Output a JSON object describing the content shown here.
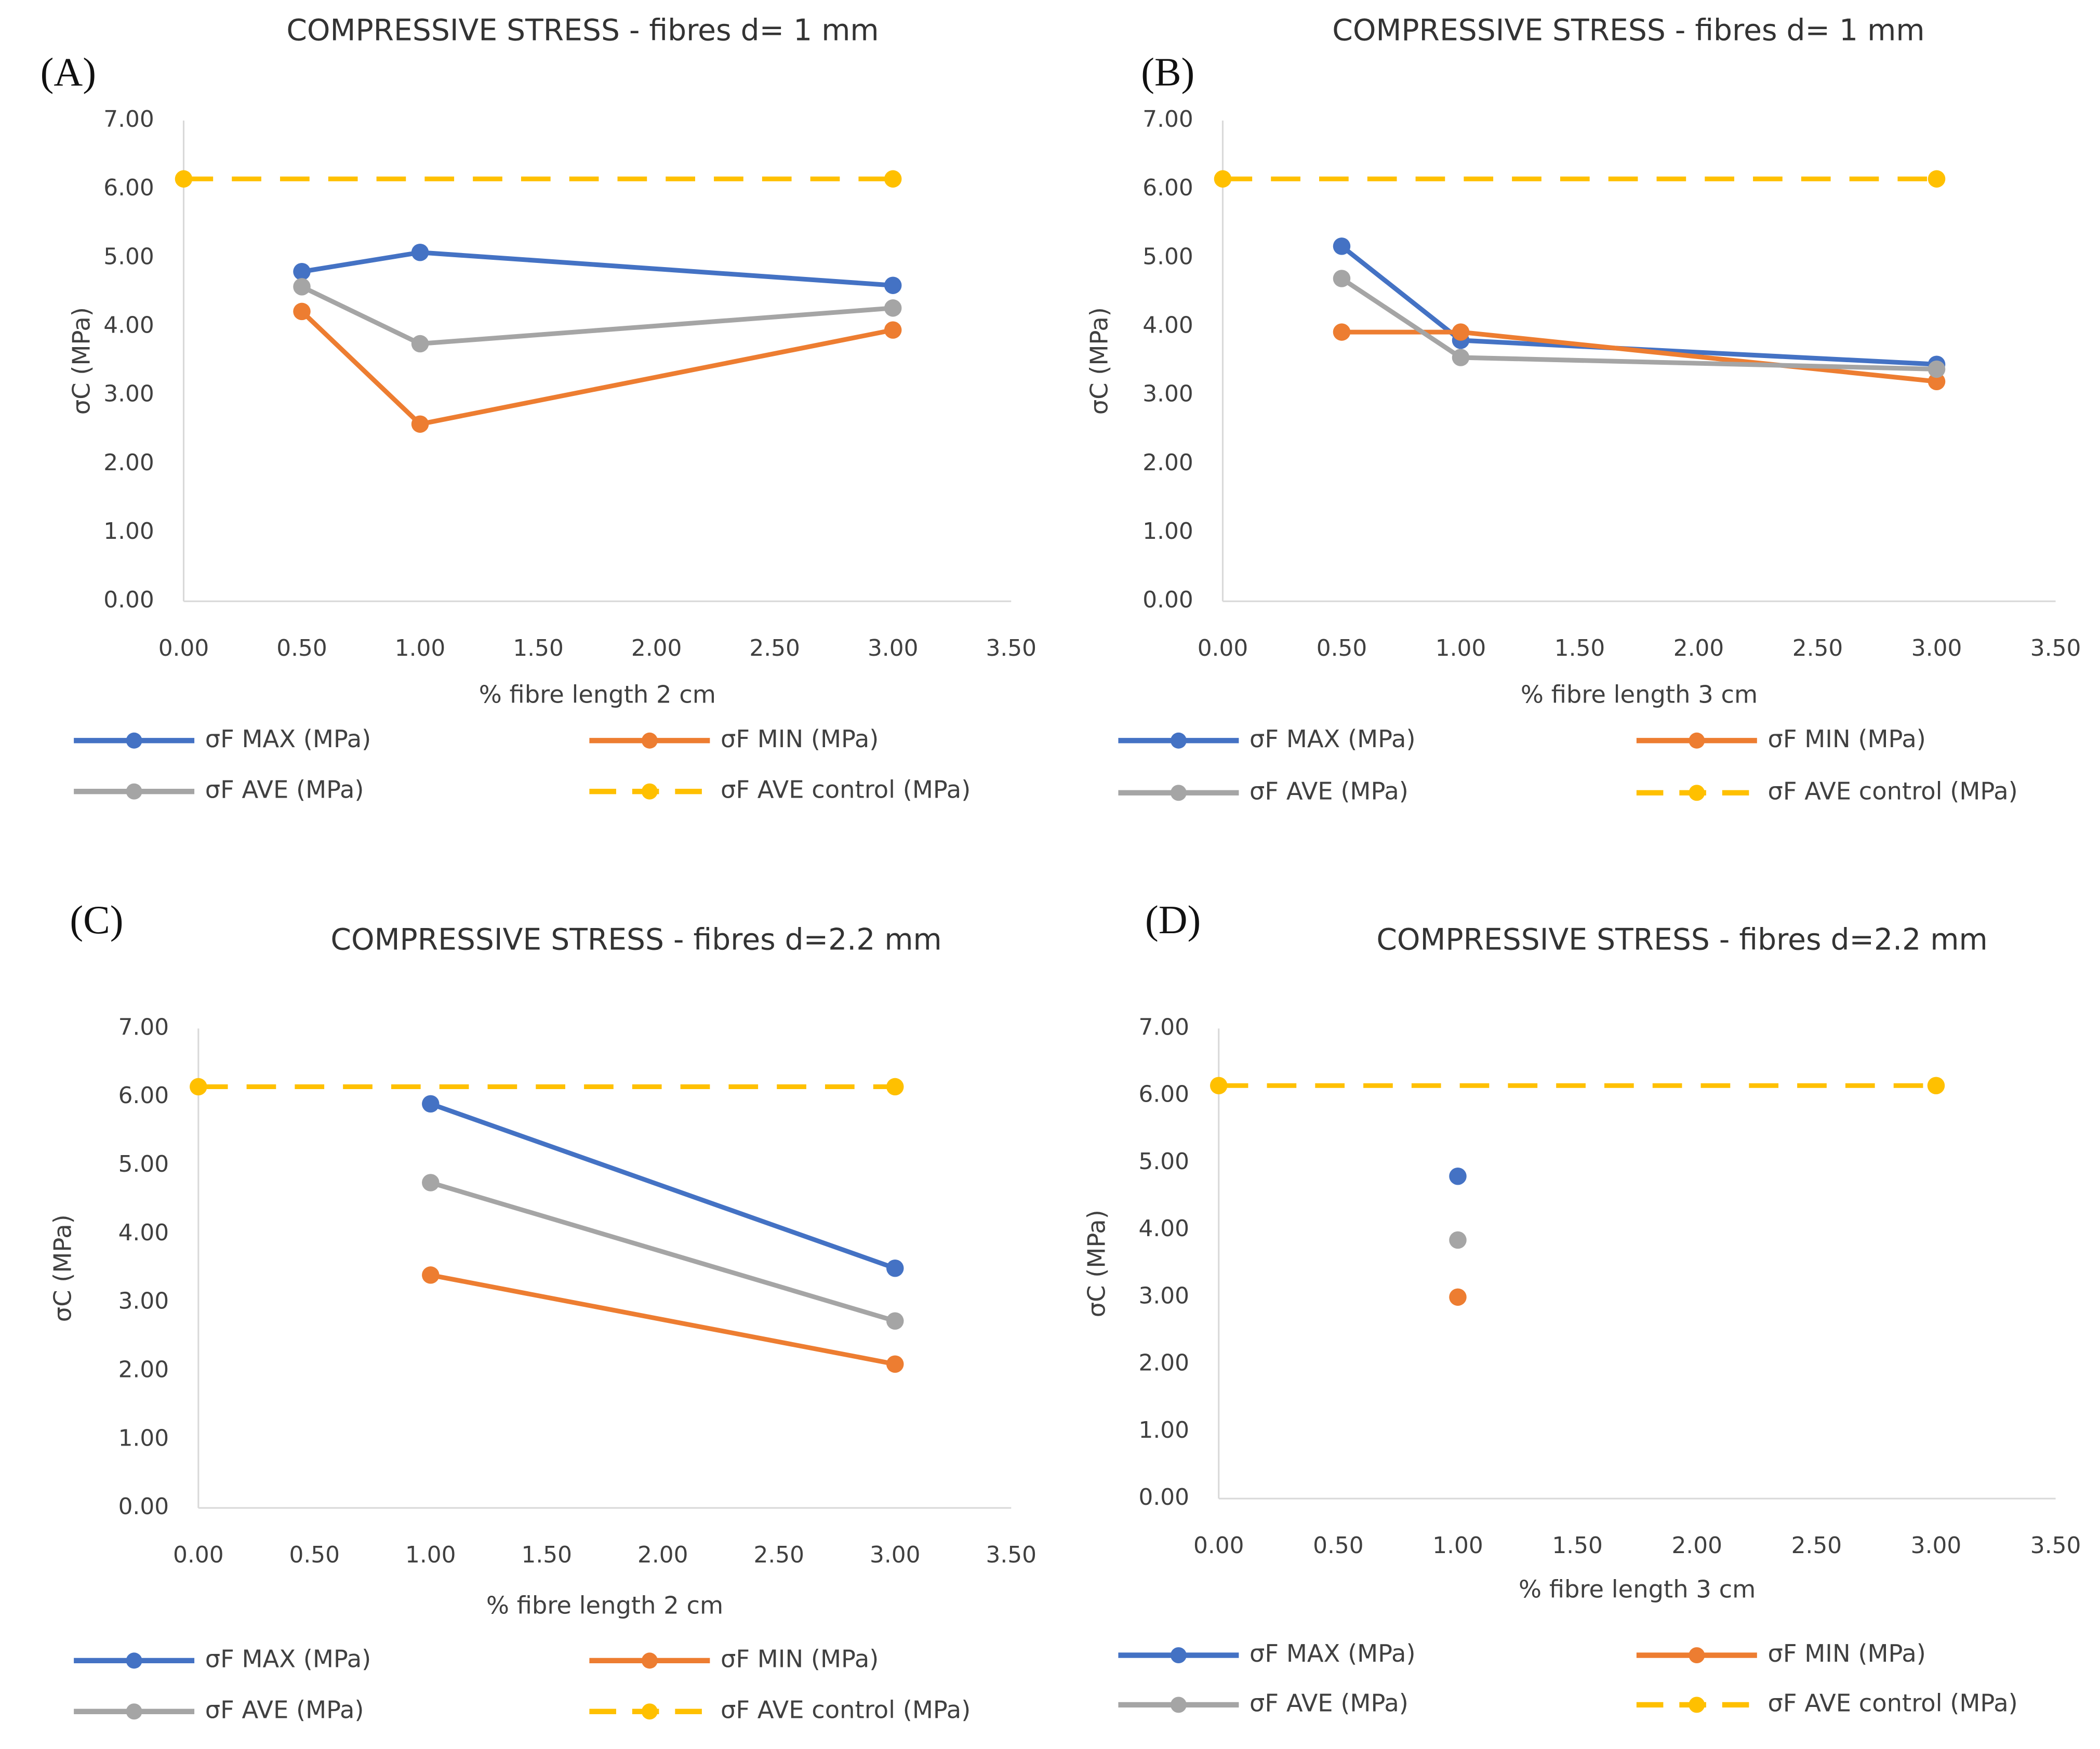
{
  "chart_data": [
    {
      "type": "scatter",
      "panel_label": "(A)",
      "title": "COMPRESSIVE STRESS - fibres d= 1 mm",
      "x_label": "% fibre length 2 cm",
      "y_label": "σC (MPa)",
      "xlim": [
        0,
        3.5
      ],
      "ylim": [
        0,
        7
      ],
      "grid": false,
      "xticks": [
        {
          "value": 0,
          "label": "0.00"
        },
        {
          "value": 0.5,
          "label": "0.50"
        },
        {
          "value": 1,
          "label": "1.00"
        },
        {
          "value": 1.5,
          "label": "1.50"
        },
        {
          "value": 2,
          "label": "2.00"
        },
        {
          "value": 2.5,
          "label": "2.50"
        },
        {
          "value": 3,
          "label": "3.00"
        },
        {
          "value": 3.5,
          "label": "3.50"
        }
      ],
      "yticks": [
        {
          "value": 0,
          "label": "0.00"
        },
        {
          "value": 1,
          "label": "1.00"
        },
        {
          "value": 2,
          "label": "2.00"
        },
        {
          "value": 3,
          "label": "3.00"
        },
        {
          "value": 4,
          "label": "4.00"
        },
        {
          "value": 5,
          "label": "5.00"
        },
        {
          "value": 6,
          "label": "6.00"
        },
        {
          "value": 7,
          "label": "7.00"
        }
      ],
      "series": [
        {
          "name": "σF MAX (MPa)",
          "color": "#4472c4",
          "line_style": "solid",
          "x": [
            0.5,
            1,
            3
          ],
          "values": [
            4.8,
            5.08,
            4.6
          ]
        },
        {
          "name": "σF MIN (MPa)",
          "color": "#ed7d31",
          "line_style": "solid",
          "x": [
            0.5,
            1,
            3
          ],
          "values": [
            4.22,
            2.58,
            3.95
          ]
        },
        {
          "name": "σF AVE (MPa)",
          "color": "#a5a5a5",
          "line_style": "solid",
          "x": [
            0.5,
            1,
            3
          ],
          "values": [
            4.58,
            3.75,
            4.27
          ]
        },
        {
          "name": "σF AVE control (MPa)",
          "color": "#ffc000",
          "line_style": "dashed",
          "x": [
            0,
            3
          ],
          "values": [
            6.15,
            6.15
          ]
        }
      ]
    },
    {
      "type": "scatter",
      "panel_label": "(B)",
      "title": "COMPRESSIVE STRESS - fibres d= 1 mm",
      "x_label": "% fibre length 3 cm",
      "y_label": "σC (MPa)",
      "xlim": [
        0,
        3.5
      ],
      "ylim": [
        0,
        7
      ],
      "grid": false,
      "xticks": [
        {
          "value": 0,
          "label": "0.00"
        },
        {
          "value": 0.5,
          "label": "0.50"
        },
        {
          "value": 1,
          "label": "1.00"
        },
        {
          "value": 1.5,
          "label": "1.50"
        },
        {
          "value": 2,
          "label": "2.00"
        },
        {
          "value": 2.5,
          "label": "2.50"
        },
        {
          "value": 3,
          "label": "3.00"
        },
        {
          "value": 3.5,
          "label": "3.50"
        }
      ],
      "yticks": [
        {
          "value": 0,
          "label": "0.00"
        },
        {
          "value": 1,
          "label": "1.00"
        },
        {
          "value": 2,
          "label": "2.00"
        },
        {
          "value": 3,
          "label": "3.00"
        },
        {
          "value": 4,
          "label": "4.00"
        },
        {
          "value": 5,
          "label": "5.00"
        },
        {
          "value": 6,
          "label": "6.00"
        },
        {
          "value": 7,
          "label": "7.00"
        }
      ],
      "series": [
        {
          "name": "σF MAX (MPa)",
          "color": "#4472c4",
          "line_style": "solid",
          "x": [
            0.5,
            1,
            3
          ],
          "values": [
            5.17,
            3.8,
            3.45
          ]
        },
        {
          "name": "σF MIN (MPa)",
          "color": "#ed7d31",
          "line_style": "solid",
          "x": [
            0.5,
            1,
            3
          ],
          "values": [
            3.92,
            3.92,
            3.2
          ]
        },
        {
          "name": "σF AVE (MPa)",
          "color": "#a5a5a5",
          "line_style": "solid",
          "x": [
            0.5,
            1,
            3
          ],
          "values": [
            4.7,
            3.55,
            3.38
          ]
        },
        {
          "name": "σF AVE control (MPa)",
          "color": "#ffc000",
          "line_style": "dashed",
          "x": [
            0,
            3
          ],
          "values": [
            6.15,
            6.15
          ]
        }
      ]
    },
    {
      "type": "scatter",
      "panel_label": "(C)",
      "title": "COMPRESSIVE STRESS - fibres d=2.2 mm",
      "x_label": "% fibre length 2 cm",
      "y_label": "σC (MPa)",
      "xlim": [
        0,
        3.5
      ],
      "ylim": [
        0,
        7
      ],
      "grid": false,
      "xticks": [
        {
          "value": 0,
          "label": "0.00"
        },
        {
          "value": 0.5,
          "label": "0.50"
        },
        {
          "value": 1,
          "label": "1.00"
        },
        {
          "value": 1.5,
          "label": "1.50"
        },
        {
          "value": 2,
          "label": "2.00"
        },
        {
          "value": 2.5,
          "label": "2.50"
        },
        {
          "value": 3,
          "label": "3.00"
        },
        {
          "value": 3.5,
          "label": "3.50"
        }
      ],
      "yticks": [
        {
          "value": 0,
          "label": "0.00"
        },
        {
          "value": 1,
          "label": "1.00"
        },
        {
          "value": 2,
          "label": "2.00"
        },
        {
          "value": 3,
          "label": "3.00"
        },
        {
          "value": 4,
          "label": "4.00"
        },
        {
          "value": 5,
          "label": "5.00"
        },
        {
          "value": 6,
          "label": "6.00"
        },
        {
          "value": 7,
          "label": "7.00"
        }
      ],
      "series": [
        {
          "name": "σF MAX (MPa)",
          "color": "#4472c4",
          "line_style": "solid",
          "x": [
            1,
            3
          ],
          "values": [
            5.9,
            3.5
          ]
        },
        {
          "name": "σF MIN (MPa)",
          "color": "#ed7d31",
          "line_style": "solid",
          "x": [
            1,
            3
          ],
          "values": [
            3.4,
            2.1
          ]
        },
        {
          "name": "σF AVE (MPa)",
          "color": "#a5a5a5",
          "line_style": "solid",
          "x": [
            1,
            3
          ],
          "values": [
            4.75,
            2.73
          ]
        },
        {
          "name": "σF AVE control (MPa)",
          "color": "#ffc000",
          "line_style": "dashed",
          "x": [
            0,
            3
          ],
          "values": [
            6.15,
            6.15
          ]
        }
      ]
    },
    {
      "type": "scatter",
      "panel_label": "(D)",
      "title": "COMPRESSIVE STRESS - fibres d=2.2 mm",
      "x_label": "% fibre length 3 cm",
      "y_label": "σC (MPa)",
      "xlim": [
        0,
        3.5
      ],
      "ylim": [
        0,
        7
      ],
      "grid": false,
      "xticks": [
        {
          "value": 0,
          "label": "0.00"
        },
        {
          "value": 0.5,
          "label": "0.50"
        },
        {
          "value": 1,
          "label": "1.00"
        },
        {
          "value": 1.5,
          "label": "1.50"
        },
        {
          "value": 2,
          "label": "2.00"
        },
        {
          "value": 2.5,
          "label": "2.50"
        },
        {
          "value": 3,
          "label": "3.00"
        },
        {
          "value": 3.5,
          "label": "3.50"
        }
      ],
      "yticks": [
        {
          "value": 0,
          "label": "0.00"
        },
        {
          "value": 1,
          "label": "1.00"
        },
        {
          "value": 2,
          "label": "2.00"
        },
        {
          "value": 3,
          "label": "3.00"
        },
        {
          "value": 4,
          "label": "4.00"
        },
        {
          "value": 5,
          "label": "5.00"
        },
        {
          "value": 6,
          "label": "6.00"
        },
        {
          "value": 7,
          "label": "7.00"
        }
      ],
      "series": [
        {
          "name": "σF MAX (MPa)",
          "color": "#4472c4",
          "line_style": "solid",
          "x": [
            1
          ],
          "values": [
            4.8
          ]
        },
        {
          "name": "σF MIN (MPa)",
          "color": "#ed7d31",
          "line_style": "solid",
          "x": [
            1
          ],
          "values": [
            3.0
          ]
        },
        {
          "name": "σF AVE (MPa)",
          "color": "#a5a5a5",
          "line_style": "solid",
          "x": [
            1
          ],
          "values": [
            3.85
          ]
        },
        {
          "name": "σF AVE control (MPa)",
          "color": "#ffc000",
          "line_style": "dashed",
          "x": [
            0,
            3
          ],
          "values": [
            6.15,
            6.15
          ]
        }
      ]
    }
  ]
}
